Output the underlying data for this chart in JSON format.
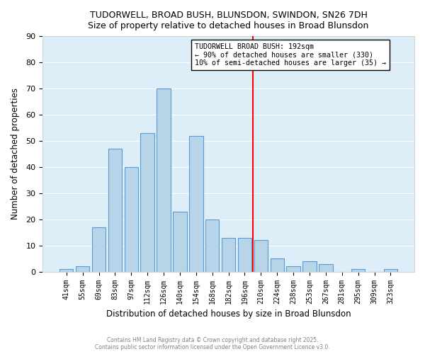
{
  "title1": "TUDORWELL, BROAD BUSH, BLUNSDON, SWINDON, SN26 7DH",
  "title2": "Size of property relative to detached houses in Broad Blunsdon",
  "xlabel": "Distribution of detached houses by size in Broad Blunsdon",
  "ylabel": "Number of detached properties",
  "bar_labels": [
    "41sqm",
    "55sqm",
    "69sqm",
    "83sqm",
    "97sqm",
    "112sqm",
    "126sqm",
    "140sqm",
    "154sqm",
    "168sqm",
    "182sqm",
    "196sqm",
    "210sqm",
    "224sqm",
    "238sqm",
    "253sqm",
    "267sqm",
    "281sqm",
    "295sqm",
    "309sqm",
    "323sqm"
  ],
  "bar_heights": [
    1,
    2,
    17,
    47,
    40,
    53,
    70,
    23,
    52,
    20,
    13,
    13,
    12,
    5,
    2,
    4,
    3,
    0,
    1,
    0,
    1
  ],
  "bar_color": "#b8d4e8",
  "bar_edge_color": "#5b9bd5",
  "vline_x_index": 11.5,
  "vline_color": "red",
  "annotation_title": "TUDORWELL BROAD BUSH: 192sqm",
  "annotation_line1": "← 90% of detached houses are smaller (330)",
  "annotation_line2": "10% of semi-detached houses are larger (35) →",
  "ylim": [
    0,
    90
  ],
  "yticks": [
    0,
    10,
    20,
    30,
    40,
    50,
    60,
    70,
    80,
    90
  ],
  "footer1": "Contains HM Land Registry data © Crown copyright and database right 2025.",
  "footer2": "Contains public sector information licensed under the Open Government Licence v3.0.",
  "bg_color": "#ddeef8",
  "plot_bg": "#ddeef8"
}
